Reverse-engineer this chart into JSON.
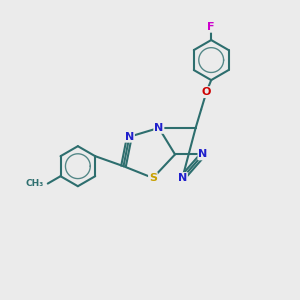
{
  "background_color": "#ebebeb",
  "bond_color": "#2d6e6e",
  "bond_width": 1.5,
  "N_color": "#2020cc",
  "S_color": "#c8a000",
  "O_color": "#cc0000",
  "F_color": "#cc00cc",
  "fig_width": 3.0,
  "fig_height": 3.0,
  "dpi": 100,
  "xlim": [
    0,
    10
  ],
  "ylim": [
    0,
    10
  ]
}
